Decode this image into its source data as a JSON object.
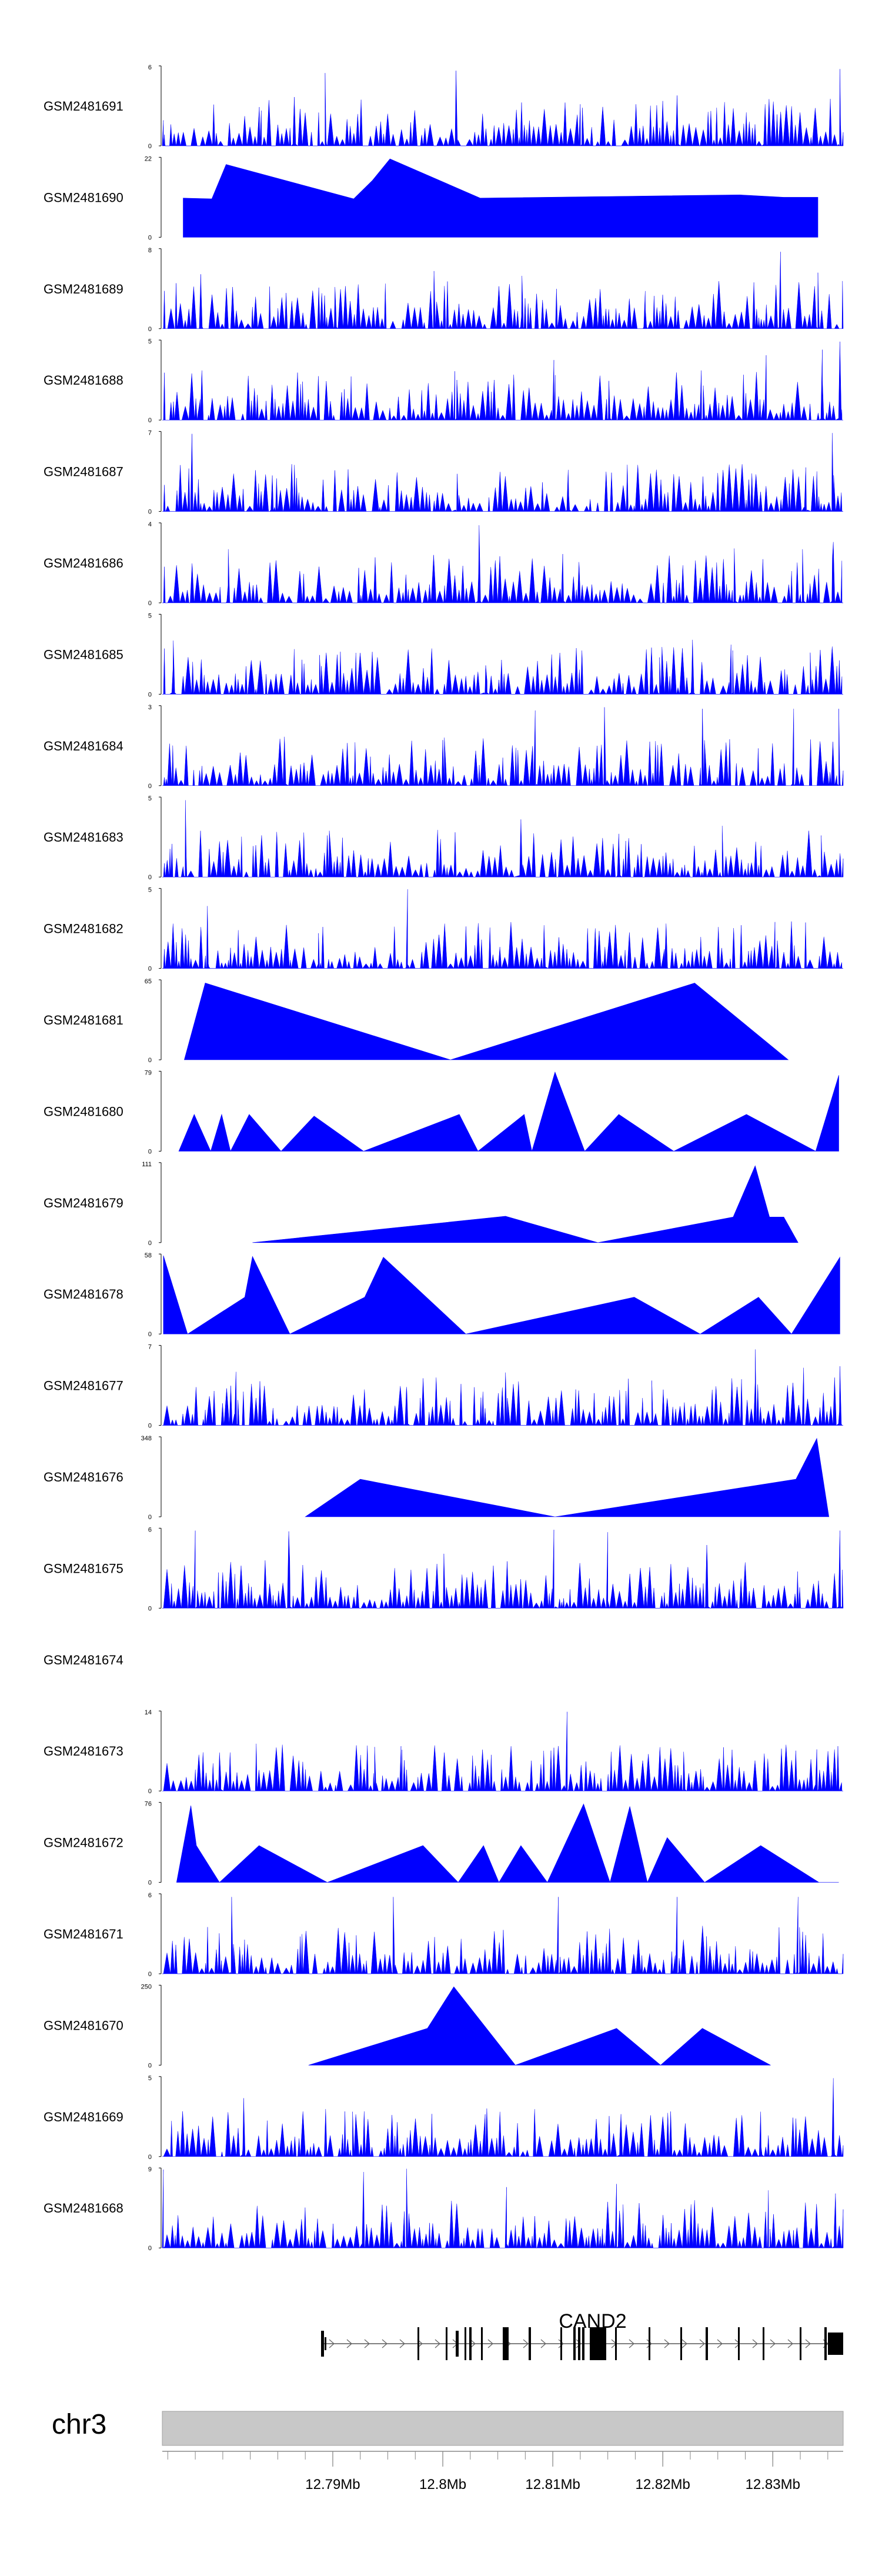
{
  "chart_data": {
    "type": "area",
    "title": "",
    "chromosome": "chr3",
    "gene": {
      "name": "CAND2"
    },
    "xlim": [
      12.7745,
      12.8364
    ],
    "x_ticks": [
      12.79,
      12.8,
      12.81,
      12.82,
      12.83
    ],
    "x_tick_labels": [
      "12.79Mb",
      "12.8Mb",
      "12.81Mb",
      "12.82Mb",
      "12.83Mb"
    ],
    "colors": {
      "coverage": "#0000ff",
      "ideogram": "#c8c8c8",
      "gene": "#000000"
    },
    "tracks": [
      {
        "name": "GSM2481691",
        "ymax": 6,
        "ymax_label": "6",
        "pattern": "dense",
        "peaks": [
          [
            12.7746,
            0.32
          ],
          [
            12.7835,
            0.44
          ],
          [
            12.7865,
            0.61
          ],
          [
            12.7893,
            0.91
          ],
          [
            12.8012,
            0.94
          ],
          [
            12.8125,
            0.52
          ],
          [
            12.8213,
            0.63
          ],
          [
            12.8293,
            0.52
          ],
          [
            12.8361,
            0.96
          ]
        ]
      },
      {
        "name": "GSM2481690",
        "ymax": 22,
        "ymax_label": "22",
        "pattern": "sparse",
        "peaks": [
          [
            12.7764,
            0.49
          ],
          [
            12.779,
            0.48
          ],
          [
            12.7803,
            0.91
          ],
          [
            12.7919,
            0.48
          ],
          [
            12.7936,
            0.71
          ],
          [
            12.7952,
            0.98
          ],
          [
            12.8034,
            0.49
          ],
          [
            12.8154,
            0.51
          ],
          [
            12.827,
            0.53
          ],
          [
            12.831,
            0.5
          ],
          [
            12.8341,
            0.5
          ]
        ]
      },
      {
        "name": "GSM2481689",
        "ymax": 8,
        "ymax_label": "8",
        "pattern": "dense",
        "peaks": [
          [
            12.778,
            0.68
          ],
          [
            12.7902,
            0.52
          ],
          [
            12.7992,
            0.72
          ],
          [
            12.8072,
            0.66
          ],
          [
            12.8184,
            0.47
          ],
          [
            12.8307,
            0.96
          ],
          [
            12.8341,
            0.7
          ]
        ]
      },
      {
        "name": "GSM2481688",
        "ymax": 5,
        "ymax_label": "5",
        "pattern": "dense",
        "peaks": [
          [
            12.7781,
            0.62
          ],
          [
            12.8011,
            0.61
          ],
          [
            12.8101,
            0.75
          ],
          [
            12.8151,
            0.49
          ],
          [
            12.8235,
            0.62
          ],
          [
            12.8294,
            0.81
          ],
          [
            12.8345,
            0.88
          ],
          [
            12.8361,
            0.98
          ]
        ]
      },
      {
        "name": "GSM2481687",
        "ymax": 7,
        "ymax_label": "7",
        "pattern": "dense",
        "peaks": [
          [
            12.7772,
            0.97
          ],
          [
            12.7845,
            0.45
          ],
          [
            12.8013,
            0.47
          ],
          [
            12.8114,
            0.52
          ],
          [
            12.825,
            0.48
          ],
          [
            12.833,
            0.55
          ],
          [
            12.8354,
            0.98
          ]
        ]
      },
      {
        "name": "GSM2481686",
        "ymax": 4,
        "ymax_label": "4",
        "pattern": "dense",
        "peaks": [
          [
            12.7805,
            0.67
          ],
          [
            12.8033,
            0.97
          ],
          [
            12.8109,
            0.61
          ],
          [
            12.8265,
            0.68
          ],
          [
            12.8327,
            0.67
          ],
          [
            12.8355,
            0.76
          ]
        ]
      },
      {
        "name": "GSM2481685",
        "ymax": 5,
        "ymax_label": "5",
        "pattern": "dense",
        "peaks": [
          [
            12.7755,
            0.67
          ],
          [
            12.7888,
            0.49
          ],
          [
            12.8039,
            0.36
          ],
          [
            12.8197,
            0.46
          ],
          [
            12.8227,
            0.68
          ],
          [
            12.8262,
            0.62
          ],
          [
            12.8334,
            0.52
          ]
        ]
      },
      {
        "name": "GSM2481684",
        "ymax": 3,
        "ymax_label": "3",
        "pattern": "dense",
        "peaks": [
          [
            12.7856,
            0.61
          ],
          [
            12.8,
            0.57
          ],
          [
            12.8084,
            0.94
          ],
          [
            12.8147,
            0.98
          ],
          [
            12.8236,
            0.96
          ],
          [
            12.8319,
            0.96
          ],
          [
            12.836,
            0.96
          ]
        ]
      },
      {
        "name": "GSM2481683",
        "ymax": 5,
        "ymax_label": "5",
        "pattern": "dense",
        "peaks": [
          [
            12.7766,
            0.96
          ],
          [
            12.7895,
            0.52
          ],
          [
            12.8071,
            0.72
          ],
          [
            12.816,
            0.54
          ],
          [
            12.8254,
            0.64
          ],
          [
            12.8344,
            0.52
          ]
        ]
      },
      {
        "name": "GSM2481682",
        "ymax": 5,
        "ymax_label": "5",
        "pattern": "dense",
        "peaks": [
          [
            12.7786,
            0.78
          ],
          [
            12.7887,
            0.44
          ],
          [
            12.7968,
            0.99
          ],
          [
            12.8092,
            0.54
          ],
          [
            12.8203,
            0.56
          ],
          [
            12.8302,
            0.58
          ]
        ]
      },
      {
        "name": "GSM2481681",
        "ymax": 65,
        "ymax_label": "65",
        "pattern": "sparse",
        "peaks": [
          [
            12.7765,
            0.0
          ],
          [
            12.7784,
            0.96
          ],
          [
            12.8007,
            0.0
          ],
          [
            12.8229,
            0.96
          ],
          [
            12.8314,
            0.0
          ]
        ]
      },
      {
        "name": "GSM2481680",
        "ymax": 79,
        "ymax_label": "79",
        "pattern": "sparse",
        "peaks": [
          [
            12.776,
            0.0
          ],
          [
            12.7774,
            0.46
          ],
          [
            12.7789,
            0.0
          ],
          [
            12.7799,
            0.46
          ],
          [
            12.7807,
            0.0
          ],
          [
            12.7824,
            0.46
          ],
          [
            12.7853,
            0.0
          ],
          [
            12.7883,
            0.44
          ],
          [
            12.7928,
            0.0
          ],
          [
            12.8015,
            0.46
          ],
          [
            12.8032,
            0.0
          ],
          [
            12.8074,
            0.46
          ],
          [
            12.8081,
            0.0
          ],
          [
            12.8102,
            0.99
          ],
          [
            12.8129,
            0.0
          ],
          [
            12.816,
            0.46
          ],
          [
            12.821,
            0.0
          ],
          [
            12.8276,
            0.46
          ],
          [
            12.8339,
            0.0
          ],
          [
            12.836,
            0.95
          ]
        ]
      },
      {
        "name": "GSM2481679",
        "ymax": 111,
        "ymax_label": "111",
        "pattern": "sparse",
        "peaks": [
          [
            12.7827,
            0.0
          ],
          [
            12.8057,
            0.33
          ],
          [
            12.8141,
            0.0
          ],
          [
            12.8264,
            0.32
          ],
          [
            12.8284,
            0.96
          ],
          [
            12.8297,
            0.32
          ],
          [
            12.831,
            0.32
          ],
          [
            12.8323,
            0.0
          ]
        ]
      },
      {
        "name": "GSM2481678",
        "ymax": 58,
        "ymax_label": "58",
        "pattern": "sparse",
        "peaks": [
          [
            12.7746,
            0.98
          ],
          [
            12.7768,
            0.0
          ],
          [
            12.782,
            0.46
          ],
          [
            12.7827,
            0.97
          ],
          [
            12.7861,
            0.0
          ],
          [
            12.7929,
            0.46
          ],
          [
            12.7946,
            0.96
          ],
          [
            12.8021,
            0.0
          ],
          [
            12.8174,
            0.46
          ],
          [
            12.8234,
            0.0
          ],
          [
            12.8287,
            0.46
          ],
          [
            12.8317,
            0.0
          ],
          [
            12.8361,
            0.96
          ]
        ]
      },
      {
        "name": "GSM2481677",
        "ymax": 7,
        "ymax_label": "7",
        "pattern": "dense",
        "peaks": [
          [
            12.7812,
            0.67
          ],
          [
            12.7967,
            0.48
          ],
          [
            12.8057,
            0.66
          ],
          [
            12.819,
            0.56
          ],
          [
            12.8284,
            0.95
          ],
          [
            12.8328,
            0.72
          ],
          [
            12.8361,
            0.74
          ]
        ]
      },
      {
        "name": "GSM2481676",
        "ymax": 348,
        "ymax_label": "348",
        "pattern": "sparse",
        "peaks": [
          [
            12.7875,
            0.0
          ],
          [
            12.7925,
            0.47
          ],
          [
            12.8102,
            0.0
          ],
          [
            12.8321,
            0.47
          ],
          [
            12.834,
            0.98
          ],
          [
            12.8351,
            0.0
          ]
        ]
      },
      {
        "name": "GSM2481675",
        "ymax": 6,
        "ymax_label": "6",
        "pattern": "dense",
        "peaks": [
          [
            12.7775,
            0.97
          ],
          [
            12.786,
            0.96
          ],
          [
            12.8001,
            0.68
          ],
          [
            12.8101,
            0.98
          ],
          [
            12.815,
            0.95
          ],
          [
            12.824,
            0.79
          ],
          [
            12.8361,
            0.97
          ]
        ]
      },
      {
        "name": "GSM2481674",
        "ymax": null,
        "ymax_label": "",
        "pattern": "empty",
        "peaks": []
      },
      {
        "name": "GSM2481673",
        "ymax": 14,
        "ymax_label": "14",
        "pattern": "dense",
        "peaks": [
          [
            12.7797,
            0.48
          ],
          [
            12.7938,
            0.55
          ],
          [
            12.7962,
            0.56
          ],
          [
            12.8113,
            0.99
          ],
          [
            12.8153,
            0.49
          ],
          [
            12.8219,
            0.49
          ],
          [
            12.834,
            0.52
          ]
        ]
      },
      {
        "name": "GSM2481672",
        "ymax": 76,
        "ymax_label": "76",
        "pattern": "sparse",
        "peaks": [
          [
            12.7758,
            0.0
          ],
          [
            12.7771,
            0.96
          ],
          [
            12.7776,
            0.46
          ],
          [
            12.7797,
            0.0
          ],
          [
            12.7833,
            0.46
          ],
          [
            12.7895,
            0.0
          ],
          [
            12.7982,
            0.46
          ],
          [
            12.8014,
            0.0
          ],
          [
            12.8037,
            0.46
          ],
          [
            12.8051,
            0.0
          ],
          [
            12.8071,
            0.46
          ],
          [
            12.8095,
            0.0
          ],
          [
            12.8128,
            0.98
          ],
          [
            12.8152,
            0.0
          ],
          [
            12.817,
            0.95
          ],
          [
            12.8186,
            0.0
          ],
          [
            12.8204,
            0.56
          ],
          [
            12.8238,
            0.0
          ],
          [
            12.8289,
            0.46
          ],
          [
            12.8342,
            0.0
          ],
          [
            12.836,
            0.0
          ]
        ]
      },
      {
        "name": "GSM2481671",
        "ymax": 6,
        "ymax_label": "6",
        "pattern": "dense",
        "peaks": [
          [
            12.7808,
            0.96
          ],
          [
            12.7955,
            0.96
          ],
          [
            12.8105,
            0.96
          ],
          [
            12.8213,
            0.96
          ],
          [
            12.8323,
            0.96
          ]
        ]
      },
      {
        "name": "GSM2481670",
        "ymax": 250,
        "ymax_label": "250",
        "pattern": "sparse",
        "peaks": [
          [
            12.7878,
            0.0
          ],
          [
            12.7986,
            0.46
          ],
          [
            12.801,
            0.98
          ],
          [
            12.8066,
            0.0
          ],
          [
            12.8158,
            0.46
          ],
          [
            12.8198,
            0.0
          ],
          [
            12.8236,
            0.46
          ],
          [
            12.8298,
            0.0
          ]
        ]
      },
      {
        "name": "GSM2481669",
        "ymax": 5,
        "ymax_label": "5",
        "pattern": "dense",
        "peaks": [
          [
            12.7819,
            0.73
          ],
          [
            12.7918,
            0.56
          ],
          [
            12.804,
            0.6
          ],
          [
            12.8162,
            0.53
          ],
          [
            12.8289,
            0.56
          ],
          [
            12.8355,
            0.98
          ]
        ]
      },
      {
        "name": "GSM2481668",
        "ymax": 9,
        "ymax_label": "9",
        "pattern": "dense",
        "peaks": [
          [
            12.7746,
            0.98
          ],
          [
            12.7928,
            0.95
          ],
          [
            12.7967,
            0.99
          ],
          [
            12.8058,
            0.76
          ],
          [
            12.8158,
            0.8
          ],
          [
            12.8296,
            0.72
          ],
          [
            12.8357,
            0.68
          ]
        ]
      }
    ]
  }
}
